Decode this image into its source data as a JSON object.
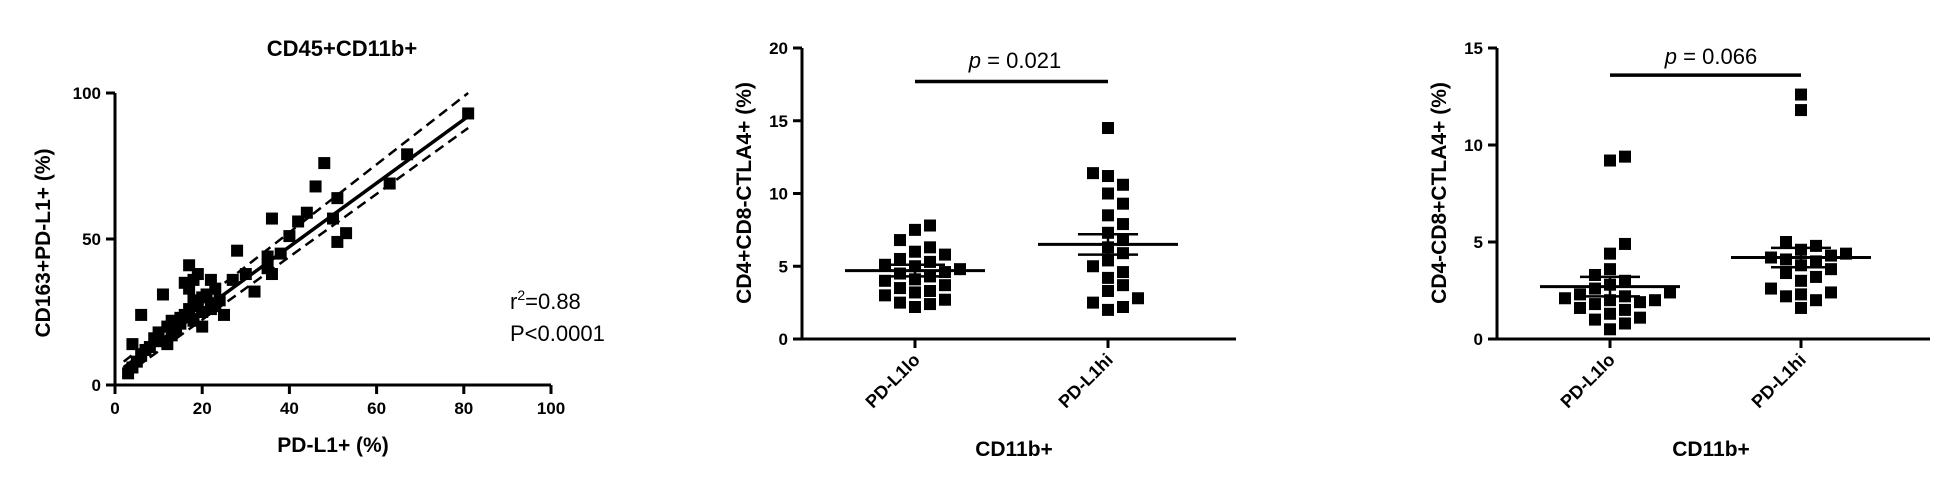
{
  "chart_data": [
    {
      "type": "scatter",
      "title": "CD45+CD11b+",
      "xlabel": "PD-L1+ (%)",
      "ylabel": "CD163+PD-L1+ (%)",
      "xlim": [
        0,
        100
      ],
      "ylim": [
        0,
        100
      ],
      "xticks": [
        0,
        20,
        40,
        60,
        80,
        100
      ],
      "yticks": [
        0,
        50,
        100
      ],
      "grid": false,
      "marker": "square",
      "points": [
        [
          3,
          4
        ],
        [
          4,
          6
        ],
        [
          4,
          14
        ],
        [
          5,
          8
        ],
        [
          6,
          10
        ],
        [
          6,
          24
        ],
        [
          7,
          12
        ],
        [
          8,
          13
        ],
        [
          9,
          16
        ],
        [
          10,
          15
        ],
        [
          10,
          18
        ],
        [
          11,
          31
        ],
        [
          12,
          14
        ],
        [
          12,
          20
        ],
        [
          13,
          17
        ],
        [
          13,
          22
        ],
        [
          14,
          19
        ],
        [
          15,
          21
        ],
        [
          15,
          23
        ],
        [
          16,
          24
        ],
        [
          16,
          35
        ],
        [
          17,
          26
        ],
        [
          17,
          33
        ],
        [
          17,
          41
        ],
        [
          18,
          22
        ],
        [
          18,
          29
        ],
        [
          18,
          36
        ],
        [
          19,
          27
        ],
        [
          19,
          38
        ],
        [
          20,
          20
        ],
        [
          20,
          25
        ],
        [
          20,
          30
        ],
        [
          21,
          31
        ],
        [
          22,
          26
        ],
        [
          22,
          28
        ],
        [
          22,
          36
        ],
        [
          23,
          27
        ],
        [
          23,
          33
        ],
        [
          24,
          29
        ],
        [
          25,
          24
        ],
        [
          27,
          36
        ],
        [
          28,
          46
        ],
        [
          30,
          38
        ],
        [
          32,
          32
        ],
        [
          35,
          40
        ],
        [
          35,
          44
        ],
        [
          36,
          57
        ],
        [
          36,
          38
        ],
        [
          38,
          45
        ],
        [
          40,
          51
        ],
        [
          42,
          56
        ],
        [
          44,
          59
        ],
        [
          46,
          68
        ],
        [
          48,
          76
        ],
        [
          50,
          57
        ],
        [
          51,
          64
        ],
        [
          51,
          49
        ],
        [
          53,
          52
        ],
        [
          63,
          69
        ],
        [
          67,
          79
        ],
        [
          81,
          93
        ]
      ],
      "fit_line": {
        "x": [
          2,
          81
        ],
        "y": [
          6,
          92
        ]
      },
      "ci_upper": {
        "x": [
          2,
          81
        ],
        "y": [
          8,
          100
        ]
      },
      "ci_lower": {
        "x": [
          2,
          81
        ],
        "y": [
          3,
          88
        ]
      },
      "annotations": {
        "r2_prefix": "r",
        "r2_sup": "2",
        "r2_value": "=0.88",
        "p": "P<0.0001"
      }
    },
    {
      "type": "scatter",
      "title": "",
      "xlabel": "CD11b+",
      "ylabel": "CD4+CD8-CTLA4+ (%)",
      "ylim": [
        0,
        20
      ],
      "yticks": [
        0,
        5,
        10,
        15,
        20
      ],
      "categories": [
        "PD-L1lo",
        "PD-L1hi"
      ],
      "grid": false,
      "marker": "square",
      "groups": [
        {
          "category": "PD-L1lo",
          "values": [
            2.2,
            2.4,
            2.5,
            2.7,
            3.0,
            3.2,
            3.3,
            3.5,
            3.7,
            4.0,
            4.1,
            4.3,
            4.5,
            4.6,
            4.8,
            5.0,
            5.1,
            5.3,
            5.5,
            5.8,
            6.0,
            6.3,
            6.8,
            7.5,
            7.8
          ],
          "mean": 4.7,
          "sem_low": 4.3,
          "sem_high": 5.1
        },
        {
          "category": "PD-L1hi",
          "values": [
            2.0,
            2.2,
            2.5,
            2.8,
            3.3,
            3.7,
            4.2,
            4.6,
            5.0,
            5.4,
            5.9,
            6.3,
            6.8,
            7.3,
            7.9,
            8.5,
            9.3,
            10.0,
            10.6,
            11.2,
            11.4,
            14.5
          ],
          "mean": 6.5,
          "sem_low": 5.8,
          "sem_high": 7.2
        }
      ],
      "significance": {
        "p_symbol": "p",
        "p_text": " = 0.021",
        "y": 17.7
      }
    },
    {
      "type": "scatter",
      "title": "",
      "xlabel": "CD11b+",
      "ylabel": "CD4-CD8+CTLA4+ (%)",
      "ylim": [
        0,
        15
      ],
      "yticks": [
        0,
        5,
        10,
        15
      ],
      "categories": [
        "PD-L1lo",
        "PD-L1hi"
      ],
      "grid": false,
      "marker": "square",
      "groups": [
        {
          "category": "PD-L1lo",
          "values": [
            0.5,
            0.8,
            1.0,
            1.1,
            1.3,
            1.5,
            1.6,
            1.8,
            1.9,
            2.0,
            2.0,
            2.1,
            2.2,
            2.3,
            2.4,
            2.6,
            2.8,
            3.0,
            3.3,
            3.6,
            4.4,
            4.9,
            9.2,
            9.4
          ],
          "mean": 2.7,
          "sem_low": 2.2,
          "sem_high": 3.2
        },
        {
          "category": "PD-L1hi",
          "values": [
            1.6,
            2.0,
            2.2,
            2.3,
            2.4,
            2.6,
            3.0,
            3.2,
            3.4,
            3.6,
            3.8,
            4.0,
            4.1,
            4.2,
            4.3,
            4.4,
            4.6,
            4.8,
            5.0,
            11.8,
            12.6
          ],
          "mean": 4.2,
          "sem_low": 3.7,
          "sem_high": 4.7
        }
      ],
      "significance": {
        "p_symbol": "p",
        "p_text": " = 0.066",
        "y": 13.6
      }
    }
  ]
}
